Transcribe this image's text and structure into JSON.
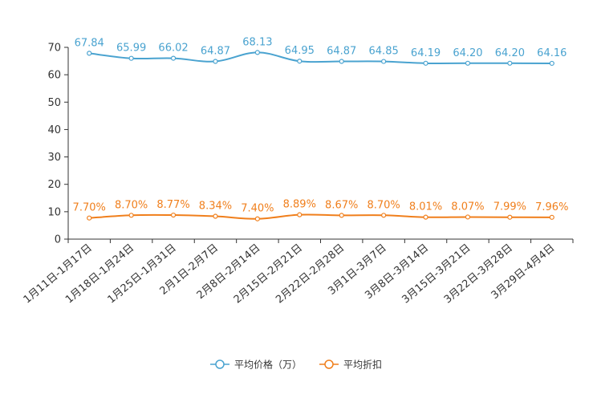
{
  "chart_data": {
    "type": "line",
    "title": "",
    "xlabel": "",
    "ylabel": "",
    "ylim": [
      0,
      70
    ],
    "yticks": [
      0,
      10,
      20,
      30,
      40,
      50,
      60,
      70
    ],
    "grid": false,
    "legend_position": "bottom-center",
    "categories": [
      "1月11日-1月17日",
      "1月18日-1月24日",
      "1月25日-1月31日",
      "2月1日-2月7日",
      "2月8日-2月14日",
      "2月15日-2月21日",
      "2月22日-2月28日",
      "3月1日-3月7日",
      "3月8日-3月14日",
      "3月15日-3月21日",
      "3月22日-3月28日",
      "3月29日-4月4日"
    ],
    "series": [
      {
        "name": "平均价格（万）",
        "color": "#4aa3d0",
        "values": [
          67.84,
          65.99,
          66.02,
          64.87,
          68.13,
          64.95,
          64.87,
          64.85,
          64.19,
          64.2,
          64.2,
          64.16
        ],
        "labels": [
          "67.84",
          "65.99",
          "66.02",
          "64.87",
          "68.13",
          "64.95",
          "64.87",
          "64.85",
          "64.19",
          "64.20",
          "64.20",
          "64.16"
        ]
      },
      {
        "name": "平均折扣",
        "color": "#f07f1c",
        "values": [
          7.7,
          8.7,
          8.77,
          8.34,
          7.4,
          8.89,
          8.67,
          8.7,
          8.01,
          8.07,
          7.99,
          7.96
        ],
        "labels": [
          "7.70%",
          "8.70%",
          "8.77%",
          "8.34%",
          "7.40%",
          "8.89%",
          "8.67%",
          "8.70%",
          "8.01%",
          "8.07%",
          "7.99%",
          "7.96%"
        ]
      }
    ]
  }
}
